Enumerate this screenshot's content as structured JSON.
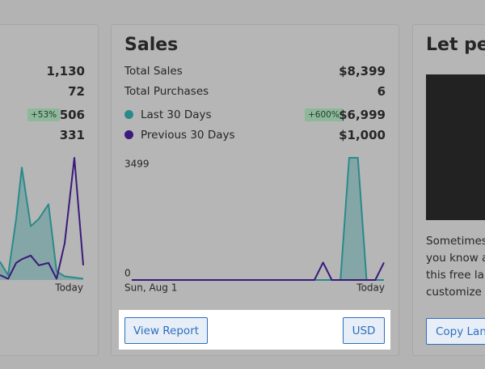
{
  "cards": [
    {
      "stats": [
        {
          "value": "1,130"
        },
        {
          "value": "72"
        },
        {
          "badge": "+53%",
          "value": "506"
        },
        {
          "value": "331"
        }
      ],
      "chart": {
        "type": "line",
        "x": [
          0,
          10,
          20,
          27,
          38,
          48,
          60,
          70,
          80,
          92,
          103
        ],
        "ylim": [
          0,
          100
        ],
        "x_end_label": "Today",
        "series": [
          {
            "color": "#2a8a8a",
            "values": [
              15,
              4,
              50,
              92,
              44,
              50,
              62,
              7,
              3,
              2,
              1
            ]
          },
          {
            "color": "#3a1a7a",
            "values": [
              4,
              1,
              14,
              17,
              20,
              12,
              14,
              1,
              30,
              100,
              12
            ]
          }
        ]
      }
    },
    {
      "title": "Sales",
      "stats": [
        {
          "label": "Total Sales",
          "value": "$8,399"
        },
        {
          "label": "Total Purchases",
          "value": "6"
        }
      ],
      "legend": [
        {
          "label": "Last 30 Days",
          "badge": "+600%",
          "value": "$6,999"
        },
        {
          "label": "Previous 30 Days",
          "value": "$1,000"
        }
      ],
      "chart": {
        "type": "line",
        "ylim": [
          0,
          3499
        ],
        "yticks": [
          0,
          3499
        ],
        "x_labels": [
          "Sun, Aug 1",
          "Today"
        ],
        "series": [
          {
            "color": "#2a8a8a",
            "values": [
              0,
              0,
              0,
              0,
              0,
              0,
              0,
              0,
              0,
              0,
              0,
              0,
              0,
              0,
              0,
              0,
              0,
              0,
              0,
              0,
              0,
              0,
              0,
              0,
              0,
              3499,
              3499,
              0,
              0,
              0
            ]
          },
          {
            "color": "#3a1a7a",
            "values": [
              0,
              0,
              0,
              0,
              0,
              0,
              0,
              0,
              0,
              0,
              0,
              0,
              0,
              0,
              0,
              0,
              0,
              0,
              0,
              0,
              0,
              0,
              500,
              0,
              0,
              0,
              0,
              0,
              0,
              500
            ]
          }
        ]
      },
      "buttons": [
        "View Report",
        "USD"
      ]
    },
    {
      "title": "Let peo",
      "body": [
        "Sometimes",
        "you know al",
        "this free lan",
        "customize i"
      ],
      "button": "Copy Lan"
    }
  ]
}
